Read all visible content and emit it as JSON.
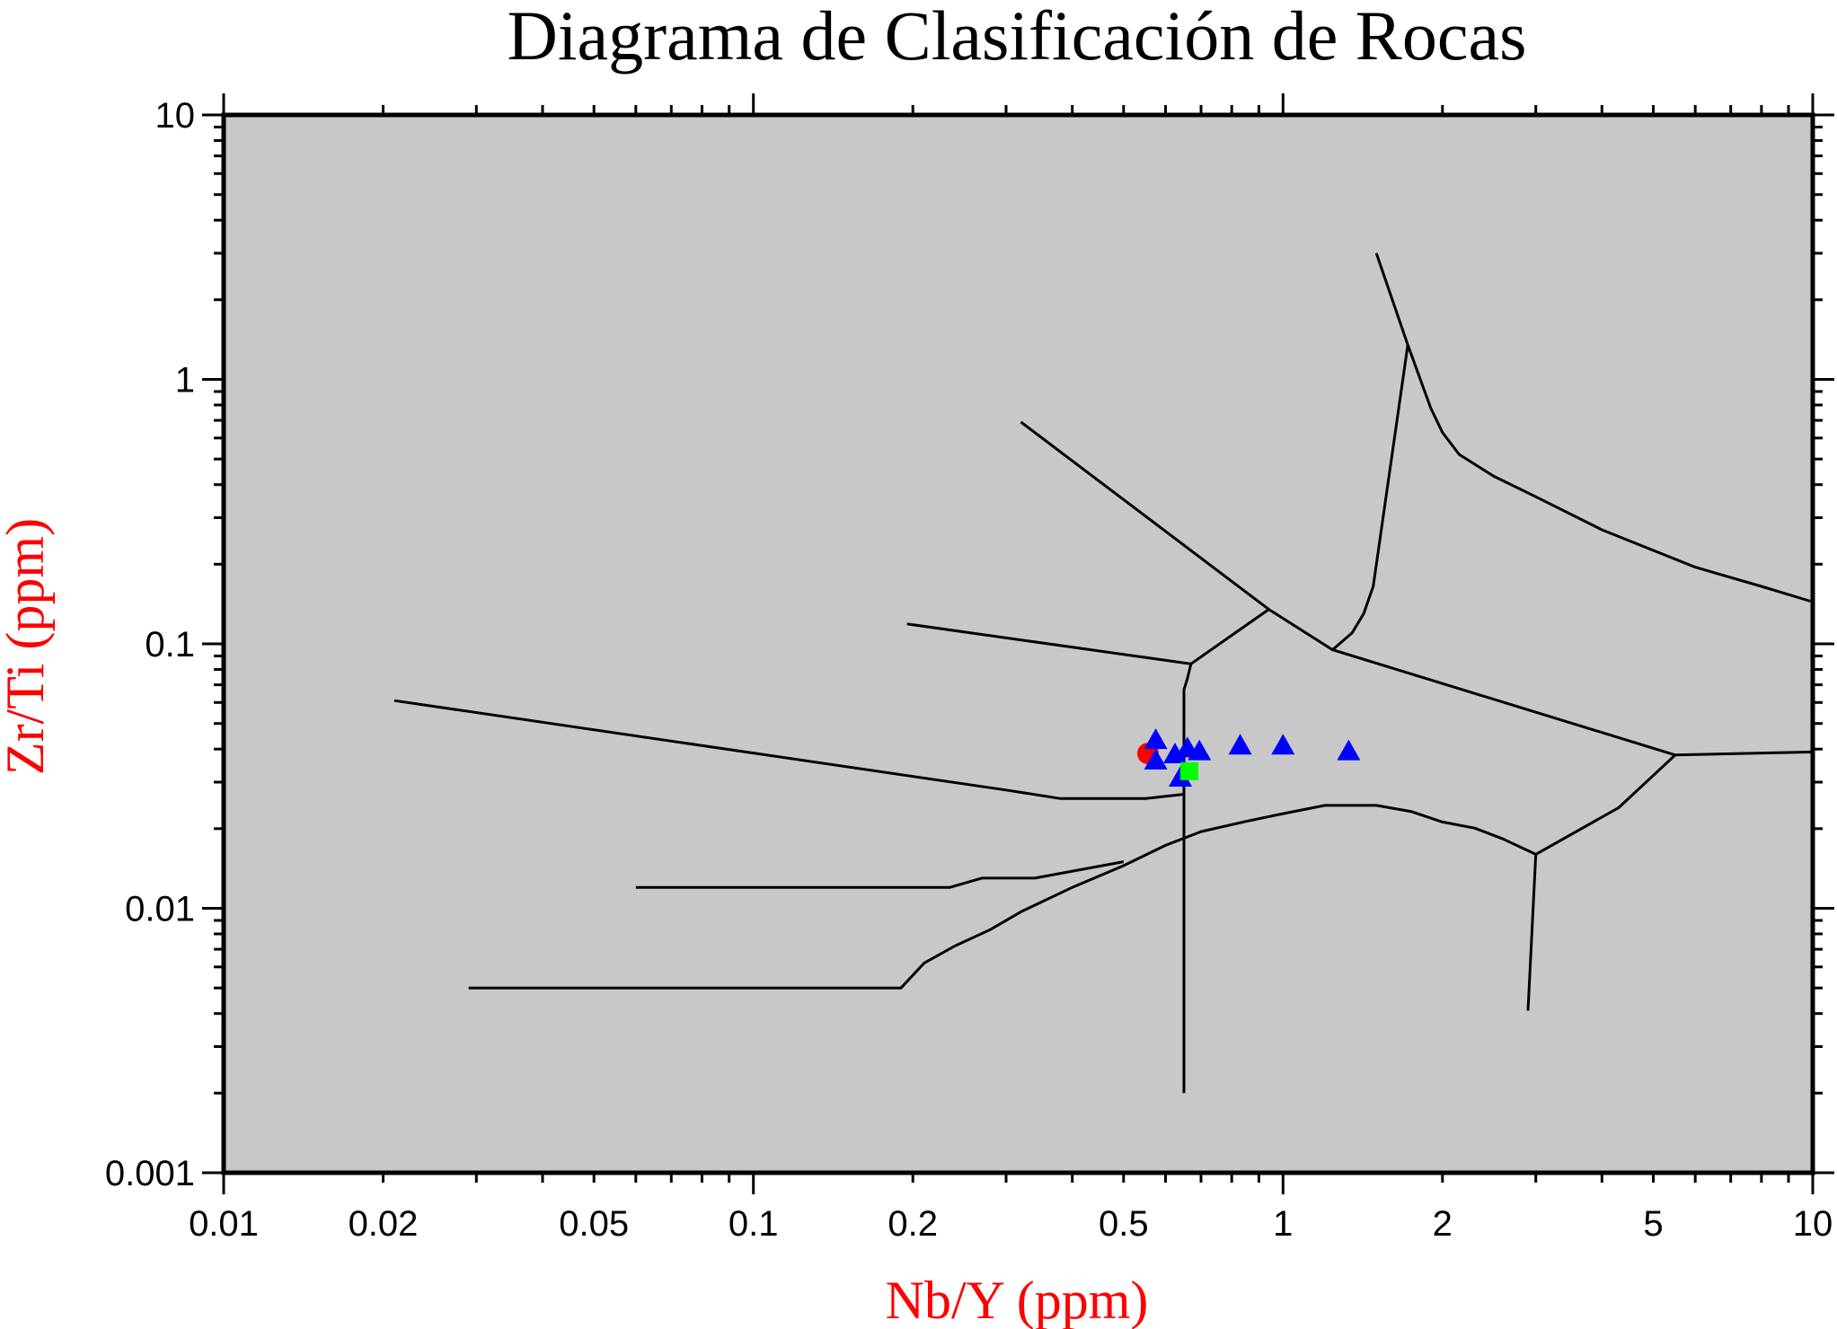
{
  "chart_data": {
    "type": "scatter",
    "title": "Diagrama de Clasificación de Rocas",
    "xlabel": "Nb/Y (ppm)",
    "ylabel": "Zr/Ti (ppm)",
    "xscale": "log",
    "yscale": "log",
    "xlim": [
      0.01,
      10
    ],
    "ylim": [
      0.001,
      10
    ],
    "x_ticks": [
      {
        "v": 0.01,
        "label": "0.01"
      },
      {
        "v": 0.02,
        "label": "0.02"
      },
      {
        "v": 0.05,
        "label": "0.05"
      },
      {
        "v": 0.1,
        "label": "0.1"
      },
      {
        "v": 0.2,
        "label": "0.2"
      },
      {
        "v": 0.5,
        "label": "0.5"
      },
      {
        "v": 1,
        "label": "1"
      },
      {
        "v": 2,
        "label": "2"
      },
      {
        "v": 5,
        "label": "5"
      },
      {
        "v": 10,
        "label": "10"
      }
    ],
    "y_ticks": [
      {
        "v": 0.001,
        "label": "0.001"
      },
      {
        "v": 0.01,
        "label": "0.01"
      },
      {
        "v": 0.1,
        "label": "0.1"
      },
      {
        "v": 1,
        "label": "1"
      },
      {
        "v": 10,
        "label": "10"
      }
    ],
    "grid": false,
    "background_color": "#c8c8c8",
    "field_boundaries": [
      [
        [
          0.021,
          0.061
        ],
        [
          0.3,
          0.028
        ],
        [
          0.38,
          0.026
        ],
        [
          0.55,
          0.026
        ],
        [
          0.65,
          0.027
        ]
      ],
      [
        [
          0.195,
          0.119
        ],
        [
          0.67,
          0.084
        ]
      ],
      [
        [
          0.67,
          0.084
        ],
        [
          0.94,
          0.135
        ],
        [
          1.24,
          0.095
        ],
        [
          5.5,
          0.038
        ]
      ],
      [
        [
          0.32,
          0.69
        ],
        [
          0.94,
          0.135
        ]
      ],
      [
        [
          1.24,
          0.095
        ],
        [
          1.35,
          0.11
        ],
        [
          1.42,
          0.13
        ],
        [
          1.48,
          0.165
        ],
        [
          1.72,
          1.35
        ]
      ],
      [
        [
          1.5,
          3.0
        ],
        [
          1.72,
          1.35
        ],
        [
          1.9,
          0.78
        ],
        [
          2.0,
          0.63
        ],
        [
          2.15,
          0.52
        ],
        [
          2.5,
          0.43
        ],
        [
          3.0,
          0.36
        ],
        [
          4.0,
          0.27
        ],
        [
          6.0,
          0.195
        ],
        [
          8.0,
          0.165
        ],
        [
          9.9,
          0.145
        ]
      ],
      [
        [
          5.5,
          0.038
        ],
        [
          10.0,
          0.039
        ]
      ],
      [
        [
          0.67,
          0.084
        ],
        [
          0.66,
          0.074
        ],
        [
          0.65,
          0.067
        ],
        [
          0.65,
          0.002
        ]
      ],
      [
        [
          0.06,
          0.012
        ],
        [
          0.235,
          0.012
        ],
        [
          0.27,
          0.013
        ],
        [
          0.34,
          0.013
        ],
        [
          0.5,
          0.015
        ]
      ],
      [
        [
          0.029,
          0.005
        ],
        [
          0.19,
          0.005
        ],
        [
          0.21,
          0.0062
        ],
        [
          0.24,
          0.0072
        ],
        [
          0.28,
          0.0083
        ],
        [
          0.32,
          0.0097
        ],
        [
          0.4,
          0.012
        ],
        [
          0.5,
          0.0145
        ],
        [
          0.6,
          0.0173
        ],
        [
          0.7,
          0.0195
        ],
        [
          0.85,
          0.0213
        ],
        [
          1.0,
          0.0228
        ],
        [
          1.2,
          0.0245
        ],
        [
          1.5,
          0.0245
        ],
        [
          1.75,
          0.0232
        ],
        [
          2.0,
          0.0212
        ],
        [
          2.3,
          0.0201
        ],
        [
          2.6,
          0.0183
        ],
        [
          3.0,
          0.016
        ],
        [
          4.3,
          0.024
        ],
        [
          5.5,
          0.038
        ]
      ],
      [
        [
          3.0,
          0.016
        ],
        [
          2.9,
          0.0041
        ]
      ]
    ],
    "series": [
      {
        "marker": "circle",
        "color": "#ff0000",
        "points": [
          [
            0.556,
            0.0385
          ]
        ]
      },
      {
        "marker": "triangle",
        "color": "#0000ff",
        "points": [
          [
            0.575,
            0.043
          ],
          [
            0.575,
            0.036
          ],
          [
            0.625,
            0.038
          ],
          [
            0.64,
            0.031
          ],
          [
            0.66,
            0.04
          ],
          [
            0.695,
            0.039
          ],
          [
            0.83,
            0.041
          ],
          [
            1.0,
            0.041
          ],
          [
            1.33,
            0.039
          ]
        ]
      },
      {
        "marker": "square",
        "color": "#00ff00",
        "points": [
          [
            0.665,
            0.033
          ]
        ]
      }
    ]
  }
}
